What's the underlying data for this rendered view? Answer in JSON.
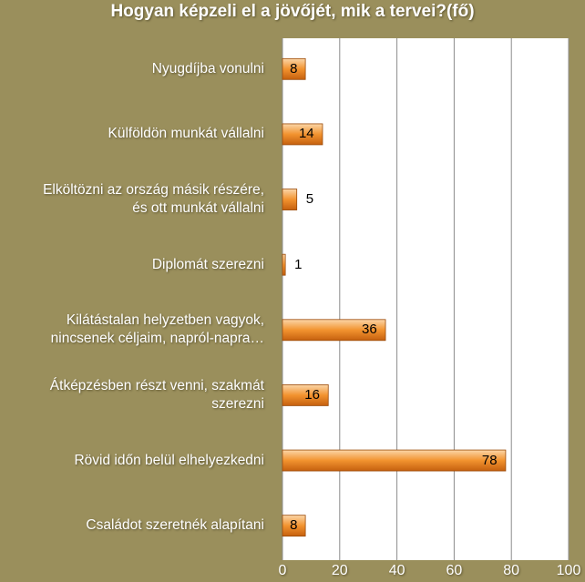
{
  "chart_data": {
    "type": "bar",
    "orientation": "horizontal",
    "title": "Hogyan képzeli el a jövőjét, mik a tervei?(fő)",
    "categories": [
      "Nyugdíjba vonulni",
      "Külföldön munkát vállalni",
      "Elköltözni az ország másik részére, és ott munkát vállalni",
      "Diplomát szerezni",
      "Kilátástalan helyzetben vagyok, nincsenek céljaim, napról-napra…",
      "Átképzésben részt venni, szakmát szerezni",
      "Rövid időn belül elhelyezkedni",
      "Családot szeretnék alapítani"
    ],
    "category_lines": [
      [
        "Nyugdíjba vonulni"
      ],
      [
        "Külföldön munkát vállalni"
      ],
      [
        "Elköltözni az ország másik részére,",
        "és ott munkát vállalni"
      ],
      [
        "Diplomát szerezni"
      ],
      [
        "Kilátástalan helyzetben vagyok,",
        "nincsenek céljaim, napról-napra…"
      ],
      [
        "Átképzésben részt venni, szakmát",
        "szerezni"
      ],
      [
        "Rövid időn belül elhelyezkedni"
      ],
      [
        "Családot szeretnék alapítani"
      ]
    ],
    "values": [
      8,
      14,
      5,
      1,
      36,
      16,
      78,
      8
    ],
    "xlim": [
      0,
      100
    ],
    "xticks": [
      0,
      20,
      40,
      60,
      80,
      100
    ],
    "grid": true,
    "colors": {
      "background": "#9a8f5c",
      "plot_area": "#ffffff",
      "bar_light": "#fbd6a8",
      "bar_mid": "#f2932f",
      "bar_dark": "#c5600e",
      "grid": "#8c8c8c"
    }
  }
}
